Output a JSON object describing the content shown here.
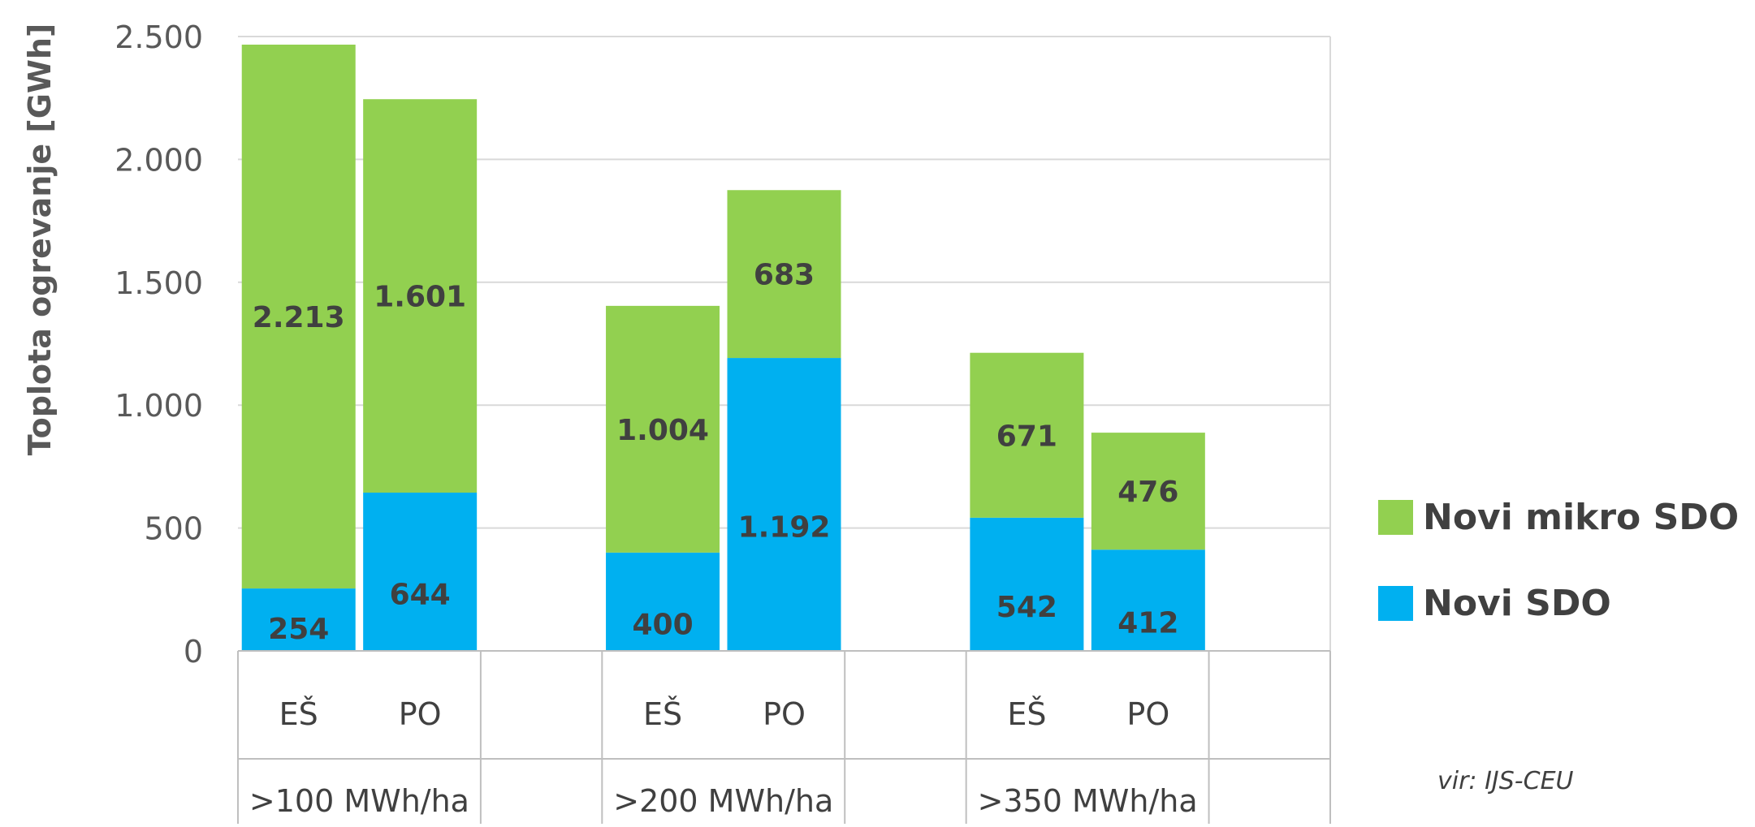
{
  "chart_data": {
    "type": "bar",
    "stacked": true,
    "ylabel": "Toplota ogrevanje [GWh]",
    "ylim": [
      0,
      2500
    ],
    "yticks": [
      0,
      500,
      1000,
      1500,
      2000,
      2500
    ],
    "ytick_labels": [
      "0",
      "500",
      "1.000",
      "1.500",
      "2.000",
      "2.500"
    ],
    "grid": true,
    "legend_position": "right",
    "groups": [
      {
        "label": ">100 MWh/ha",
        "categories": [
          "EŠ",
          "PO"
        ]
      },
      {
        "label": ">200 MWh/ha",
        "categories": [
          "EŠ",
          "PO"
        ]
      },
      {
        "label": ">350 MWh/ha",
        "categories": [
          "EŠ",
          "PO"
        ]
      }
    ],
    "categories": [
      "EŠ",
      "PO",
      "EŠ",
      "PO",
      "EŠ",
      "PO"
    ],
    "series": [
      {
        "name": "Novi SDO",
        "color": "#00B0F0",
        "values": [
          254,
          644,
          400,
          1192,
          542,
          412
        ],
        "labels": [
          "254",
          "644",
          "400",
          "1.192",
          "542",
          "412"
        ]
      },
      {
        "name": "Novi mikro SDO",
        "color": "#92D050",
        "values": [
          2213,
          1601,
          1004,
          683,
          671,
          476
        ],
        "labels": [
          "2.213",
          "1.601",
          "1.004",
          "683",
          "671",
          "476"
        ]
      }
    ],
    "source": "vir: IJS-CEU"
  }
}
